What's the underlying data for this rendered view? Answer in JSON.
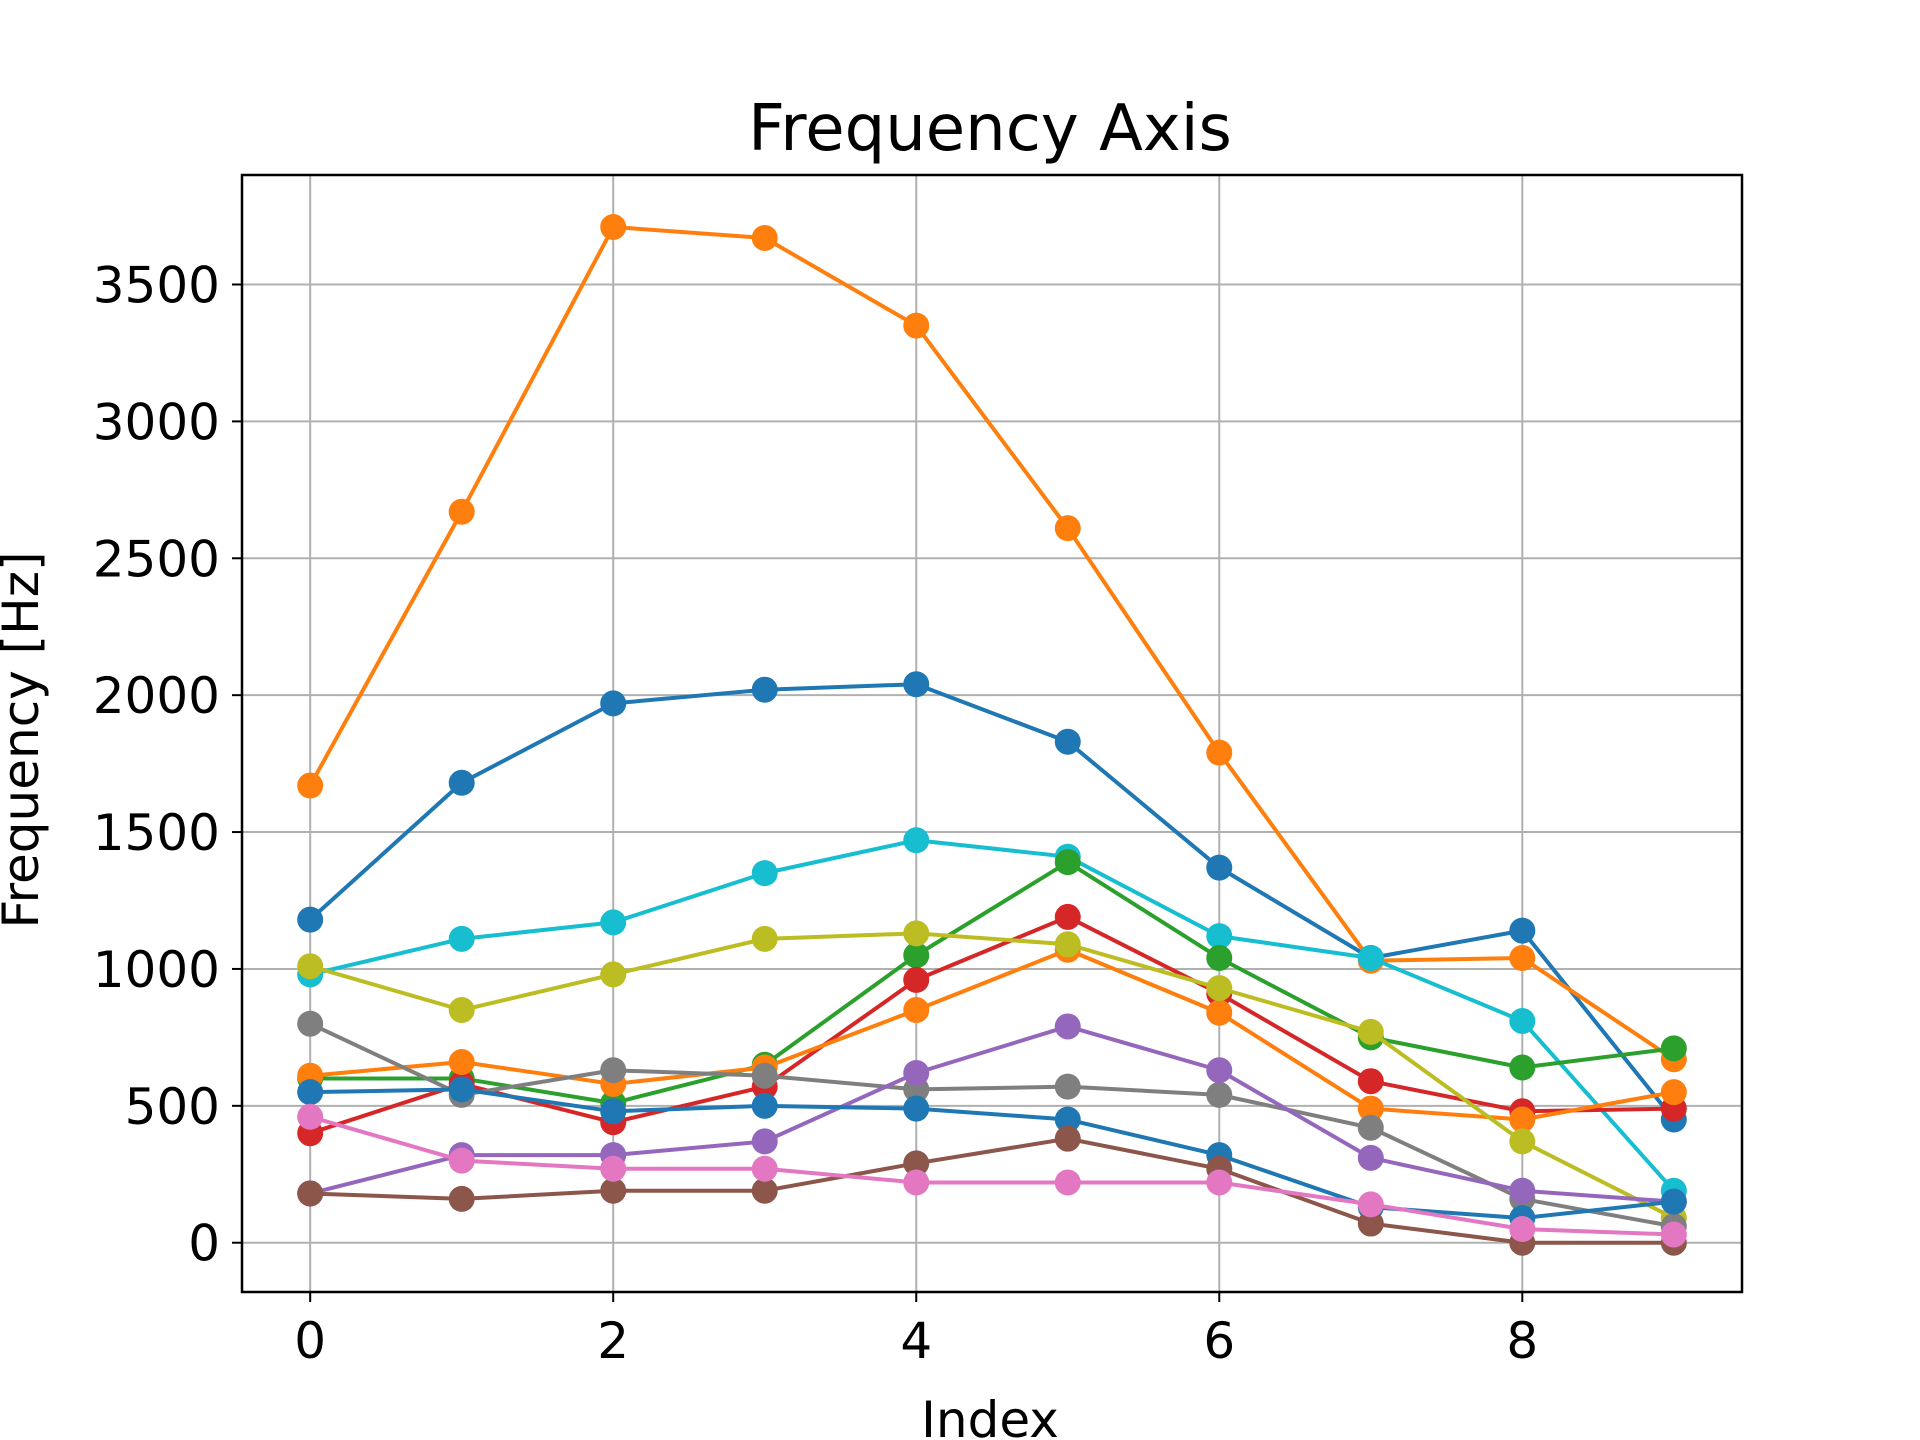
{
  "chart_data": {
    "type": "line",
    "title": "Frequency Axis",
    "xlabel": "Index",
    "ylabel": "Frequency [Hz]",
    "xlim": [
      -0.45,
      9.45
    ],
    "ylim": [
      -180,
      3900
    ],
    "grid": true,
    "x": [
      0,
      1,
      2,
      3,
      4,
      5,
      6,
      7,
      8,
      9
    ],
    "xticks": [
      0,
      2,
      4,
      6,
      8
    ],
    "yticks": [
      0,
      500,
      1000,
      1500,
      2000,
      2500,
      3000,
      3500
    ],
    "series": [
      {
        "color": "#1f77b4",
        "values": [
          1180,
          1680,
          1970,
          2020,
          2040,
          1830,
          1370,
          1040,
          1140,
          450
        ]
      },
      {
        "color": "#ff7f0e",
        "values": [
          1670,
          2670,
          3710,
          3670,
          3350,
          2610,
          1790,
          1030,
          1040,
          670
        ]
      },
      {
        "color": "#17becf",
        "values": [
          980,
          1110,
          1170,
          1350,
          1470,
          1410,
          1120,
          1040,
          810,
          190
        ]
      },
      {
        "color": "#2ca02c",
        "values": [
          600,
          600,
          510,
          650,
          1050,
          1390,
          1040,
          750,
          640,
          710
        ]
      },
      {
        "color": "#d62728",
        "values": [
          400,
          580,
          440,
          570,
          960,
          1190,
          910,
          590,
          480,
          490
        ]
      },
      {
        "color": "#ff7f0e",
        "values": [
          610,
          660,
          580,
          640,
          850,
          1070,
          840,
          490,
          450,
          550
        ]
      },
      {
        "color": "#bcbd22",
        "values": [
          1010,
          850,
          980,
          1110,
          1130,
          1090,
          930,
          770,
          370,
          90
        ]
      },
      {
        "color": "#7f7f7f",
        "values": [
          800,
          540,
          630,
          610,
          560,
          570,
          540,
          420,
          160,
          60
        ]
      },
      {
        "color": "#9467bd",
        "values": [
          180,
          320,
          320,
          370,
          620,
          790,
          630,
          310,
          190,
          150
        ]
      },
      {
        "color": "#1f77b4",
        "values": [
          550,
          560,
          480,
          500,
          490,
          450,
          320,
          130,
          90,
          150
        ]
      },
      {
        "color": "#8c564b",
        "values": [
          180,
          160,
          190,
          190,
          290,
          380,
          270,
          70,
          0,
          0
        ]
      },
      {
        "color": "#e377c2",
        "values": [
          460,
          300,
          270,
          270,
          220,
          220,
          220,
          140,
          50,
          30
        ]
      }
    ]
  }
}
